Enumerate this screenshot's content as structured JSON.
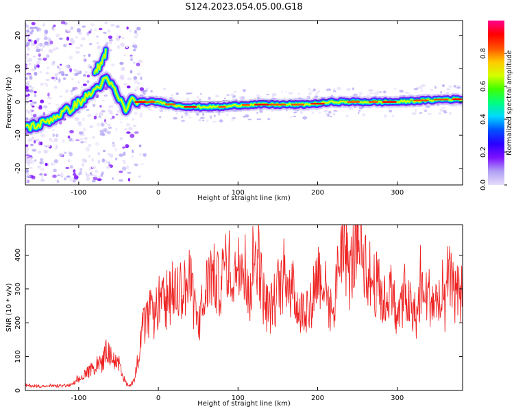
{
  "figure": {
    "title": "S124.2023.054.05.00.G18"
  },
  "chart_data": [
    {
      "type": "heatmap",
      "xlabel": "Height of straight line (km)",
      "ylabel": "Frequency (Hz)",
      "xlim": [
        -167,
        382
      ],
      "ylim": [
        -25,
        24.5
      ],
      "x_ticks": [
        -100,
        0,
        100,
        200,
        300
      ],
      "y_ticks": [
        -20,
        -10,
        0,
        10,
        20
      ],
      "grid": false,
      "ridge_x": [
        -167,
        -150,
        -130,
        -110,
        -90,
        -80,
        -72,
        -66,
        -60,
        -54,
        -48,
        -44,
        -40,
        -36,
        -32,
        -28,
        -24,
        -20,
        -10,
        0,
        20,
        40,
        60,
        80,
        100,
        120,
        140,
        160,
        180,
        200,
        220,
        240,
        260,
        280,
        300,
        320,
        340,
        360,
        382
      ],
      "ridge_y": [
        -7.5,
        -7,
        -4.5,
        -2,
        1.5,
        3.5,
        5.5,
        6.5,
        5.5,
        3,
        0.5,
        -1.5,
        -2.5,
        0,
        1.5,
        -0.5,
        0,
        0,
        0,
        0,
        -1,
        -1.5,
        -1.5,
        -1.5,
        -1,
        -0.8,
        -0.8,
        -0.8,
        -0.8,
        -0.5,
        0,
        0,
        0,
        0,
        0,
        0.3,
        0.5,
        0.8,
        0.8
      ],
      "branch_x": [
        -80,
        -74,
        -70,
        -66
      ],
      "branch_y": [
        9,
        11,
        13,
        15
      ],
      "colorbar": {
        "label": "Normalized spectral amplitude",
        "ticks": [
          "0.0",
          "0.2",
          "0.4",
          "0.6",
          "0.8"
        ],
        "range": [
          0,
          1
        ],
        "colormap": [
          "#e6dcfa",
          "#b0a0f5",
          "#7d10ff",
          "#2a00ff",
          "#0050ff",
          "#00d8ff",
          "#00ff80",
          "#40ff00",
          "#d6ff00",
          "#ffc800",
          "#ff5000",
          "#ff0000",
          "#ff0090"
        ]
      }
    },
    {
      "type": "line",
      "xlabel": "Height of straight line (km)",
      "ylabel": "SNR (10 * v/v)",
      "xlim": [
        -167,
        382
      ],
      "ylim": [
        0,
        490
      ],
      "x_ticks": [
        -100,
        0,
        100,
        200,
        300
      ],
      "y_ticks": [
        0,
        100,
        200,
        300,
        400
      ],
      "grid": false,
      "series": [
        {
          "color": "#ee2222",
          "x": [
            -167,
            -140,
            -110,
            -100,
            -90,
            -80,
            -75,
            -70,
            -65,
            -60,
            -55,
            -50,
            -45,
            -40,
            -35,
            -30,
            -25,
            -20,
            -15,
            -10,
            -5,
            0,
            5,
            10,
            15,
            20,
            25,
            30,
            35,
            40,
            45,
            50,
            55,
            60,
            65,
            70,
            75,
            80,
            85,
            90,
            95,
            100,
            105,
            110,
            115,
            120,
            125,
            130,
            135,
            140,
            145,
            150,
            155,
            160,
            165,
            170,
            175,
            180,
            185,
            190,
            195,
            200,
            205,
            210,
            215,
            220,
            225,
            230,
            235,
            240,
            245,
            250,
            255,
            260,
            265,
            270,
            275,
            280,
            285,
            290,
            295,
            300,
            305,
            310,
            315,
            320,
            325,
            330,
            335,
            340,
            345,
            350,
            355,
            360,
            365,
            370,
            375,
            382
          ],
          "values": [
            15,
            12,
            15,
            30,
            50,
            70,
            90,
            80,
            120,
            100,
            90,
            70,
            40,
            20,
            15,
            40,
            100,
            180,
            200,
            230,
            210,
            260,
            250,
            270,
            280,
            300,
            290,
            310,
            300,
            320,
            250,
            200,
            220,
            300,
            350,
            330,
            310,
            330,
            380,
            360,
            330,
            410,
            430,
            350,
            290,
            380,
            420,
            300,
            250,
            240,
            260,
            300,
            330,
            350,
            310,
            290,
            250,
            230,
            250,
            240,
            300,
            350,
            340,
            300,
            250,
            230,
            350,
            450,
            400,
            340,
            390,
            440,
            430,
            380,
            330,
            320,
            310,
            280,
            260,
            300,
            250,
            200,
            260,
            290,
            250,
            230,
            220,
            320,
            280,
            280,
            260,
            260,
            250,
            240,
            330,
            290,
            280,
            290
          ]
        }
      ]
    }
  ]
}
